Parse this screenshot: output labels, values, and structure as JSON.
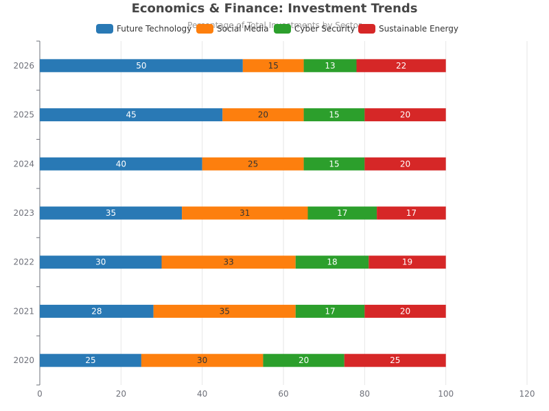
{
  "chart_data": {
    "type": "bar",
    "orientation": "horizontal",
    "stacked": true,
    "title": "Economics & Finance: Investment Trends",
    "subtitle": "Percentage of Total Investments by Sector",
    "categories": [
      "2020",
      "2021",
      "2022",
      "2023",
      "2024",
      "2025",
      "2026"
    ],
    "series": [
      {
        "name": "Future Technology",
        "color": "#2979b5",
        "values": [
          25,
          28,
          30,
          35,
          40,
          45,
          50
        ]
      },
      {
        "name": "Social Media",
        "color": "#fd7f0e",
        "values": [
          30,
          35,
          33,
          31,
          25,
          20,
          15
        ]
      },
      {
        "name": "Cyber Security",
        "color": "#2c9f2c",
        "values": [
          20,
          17,
          18,
          17,
          15,
          15,
          13
        ]
      },
      {
        "name": "Sustainable Energy",
        "color": "#d62727",
        "values": [
          25,
          20,
          19,
          17,
          20,
          20,
          22
        ]
      }
    ],
    "xlim": [
      0,
      120
    ],
    "xticks": [
      0,
      20,
      40,
      60,
      80,
      100,
      120
    ],
    "grid": true,
    "legend_position": "top"
  }
}
